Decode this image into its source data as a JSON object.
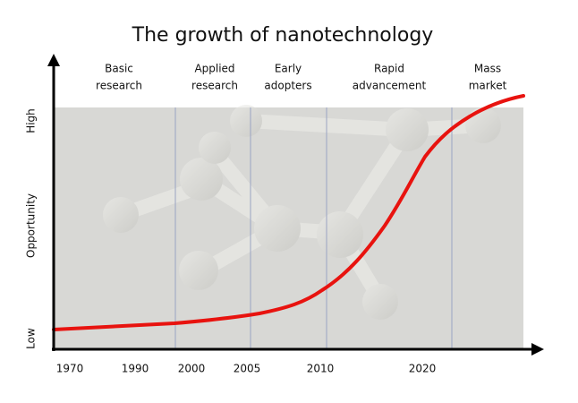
{
  "title": "The growth of nanotechnology",
  "y_axis": {
    "title": "Opportunity",
    "low": "Low",
    "high": "High"
  },
  "phases": [
    [
      "Basic",
      "research"
    ],
    [
      "Applied",
      "research"
    ],
    [
      "Early",
      "adopters"
    ],
    [
      "Rapid",
      "advancement"
    ],
    [
      "Mass",
      "market"
    ]
  ],
  "x_labels": [
    "1970",
    "1990",
    "2000",
    "2005",
    "2010",
    "2020"
  ]
}
